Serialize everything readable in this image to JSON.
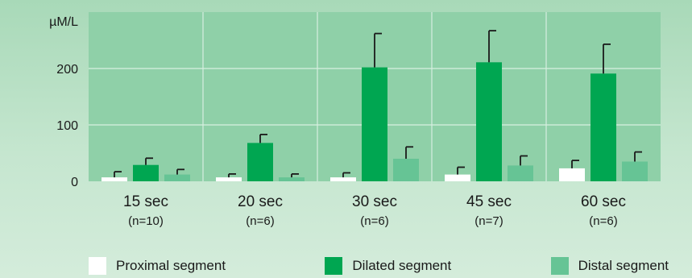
{
  "chart_data": {
    "type": "bar",
    "ylabel": "µM/L",
    "ylim": [
      0,
      300
    ],
    "yticks": [
      0,
      100,
      200
    ],
    "grid": true,
    "legend_position": "bottom",
    "categories": [
      "15 sec",
      "20 sec",
      "30 sec",
      "45 sec",
      "60 sec"
    ],
    "sublabels": [
      "(n=10)",
      "(n=6)",
      "(n=6)",
      "(n=7)",
      "(n=6)"
    ],
    "series": [
      {
        "name": "Proximal segment",
        "color": "#ffffff",
        "values": [
          7,
          7,
          7,
          12,
          23
        ],
        "error": [
          10,
          6,
          8,
          13,
          14
        ]
      },
      {
        "name": "Dilated segment",
        "color": "#00a651",
        "values": [
          29,
          68,
          202,
          211,
          191
        ],
        "error": [
          12,
          15,
          60,
          56,
          52
        ]
      },
      {
        "name": "Distal segment",
        "color": "#66c495",
        "values": [
          12,
          7,
          40,
          28,
          35
        ],
        "error": [
          9,
          6,
          21,
          17,
          17
        ]
      }
    ]
  }
}
